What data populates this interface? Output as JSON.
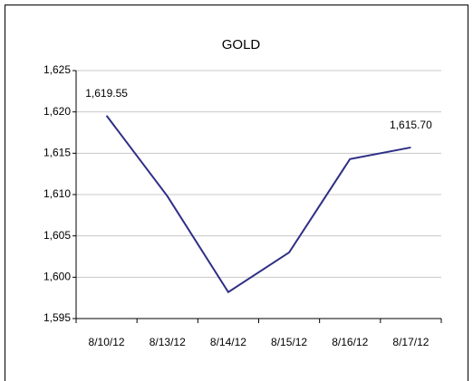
{
  "chart_data": {
    "type": "line",
    "title": "GOLD",
    "categories": [
      "8/10/12",
      "8/13/12",
      "8/14/12",
      "8/15/12",
      "8/16/12",
      "8/17/12"
    ],
    "series": [
      {
        "name": "GOLD",
        "color": "#2e2e86",
        "values": [
          1619.55,
          1609.8,
          1598.2,
          1603,
          1614.3,
          1615.7
        ],
        "value_labels": [
          "1,619.55",
          null,
          null,
          null,
          null,
          "1,615.70"
        ]
      }
    ],
    "ylim": [
      1595,
      1625
    ],
    "yticks": [
      {
        "value": 1595,
        "label": "1,595"
      },
      {
        "value": 1600,
        "label": "1,600"
      },
      {
        "value": 1605,
        "label": "1,605"
      },
      {
        "value": 1610,
        "label": "1,610"
      },
      {
        "value": 1615,
        "label": "1,615"
      },
      {
        "value": 1620,
        "label": "1,620"
      },
      {
        "value": 1625,
        "label": "1,625"
      }
    ],
    "grid": true,
    "legend": false
  }
}
